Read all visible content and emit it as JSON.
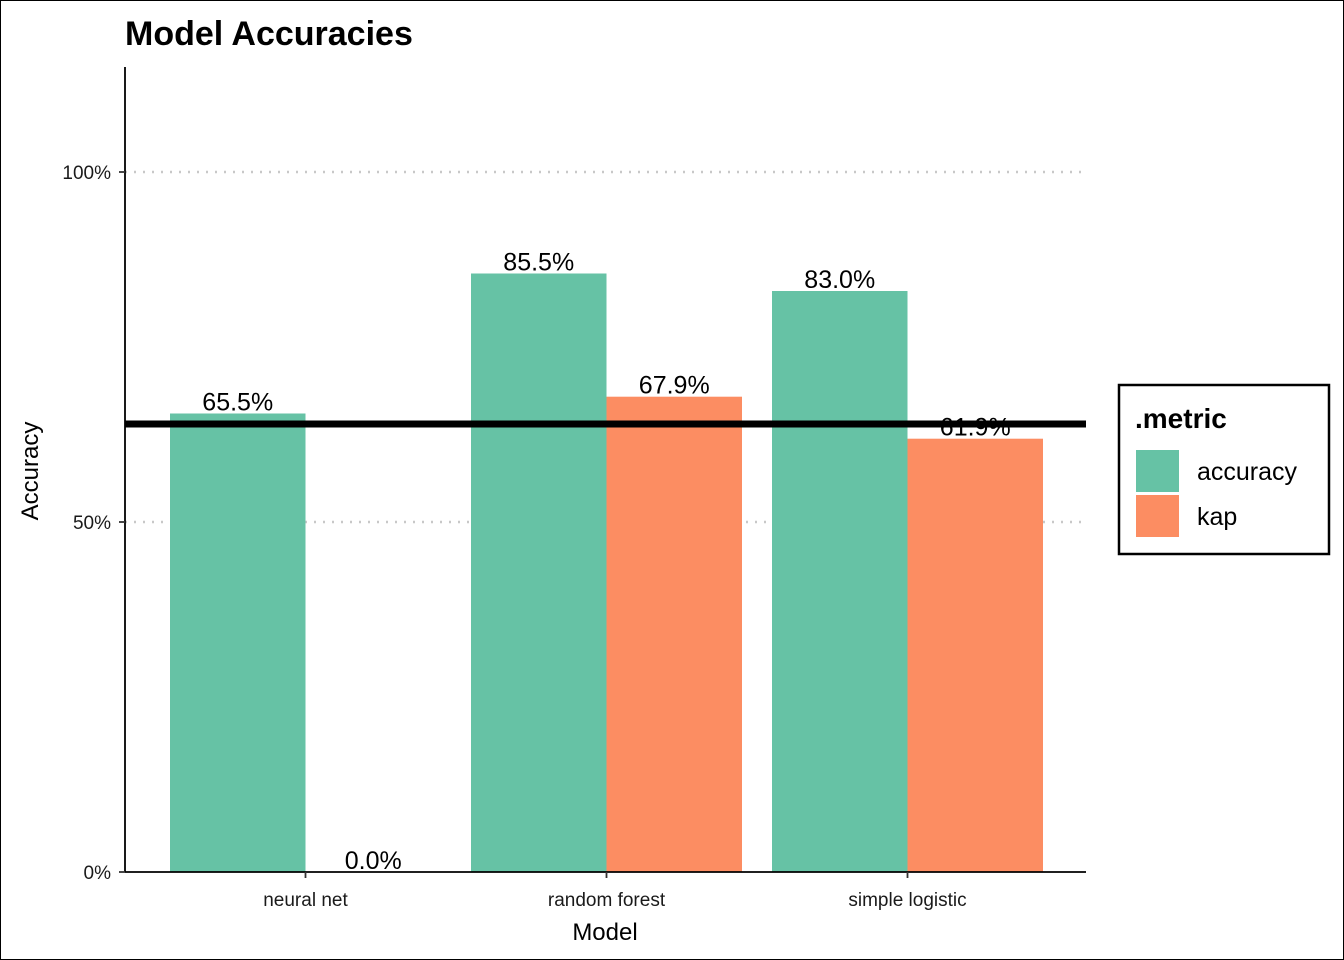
{
  "chart_data": {
    "type": "bar",
    "title": "Model Accuracies",
    "xlabel": "Model",
    "ylabel": "Accuracy",
    "categories": [
      "neural net",
      "random forest",
      "simple logistic"
    ],
    "series": [
      {
        "name": "accuracy",
        "color": "#66C2A5",
        "values": [
          0.655,
          0.855,
          0.83
        ],
        "labels": [
          "65.5%",
          "85.5%",
          "83.0%"
        ]
      },
      {
        "name": "kap",
        "color": "#FC8D62",
        "values": [
          0.0,
          0.679,
          0.619
        ],
        "labels": [
          "0.0%",
          "67.9%",
          "61.9%"
        ]
      }
    ],
    "ylim": [
      0,
      1.15
    ],
    "yticks": [
      0,
      0.5,
      1.0
    ],
    "ytick_labels": [
      "0%",
      "50%",
      "100%"
    ],
    "hline": 0.64,
    "grid": "dotted horizontal at 50% and 100%",
    "legend": {
      "title": ".metric",
      "placement": "right"
    }
  }
}
